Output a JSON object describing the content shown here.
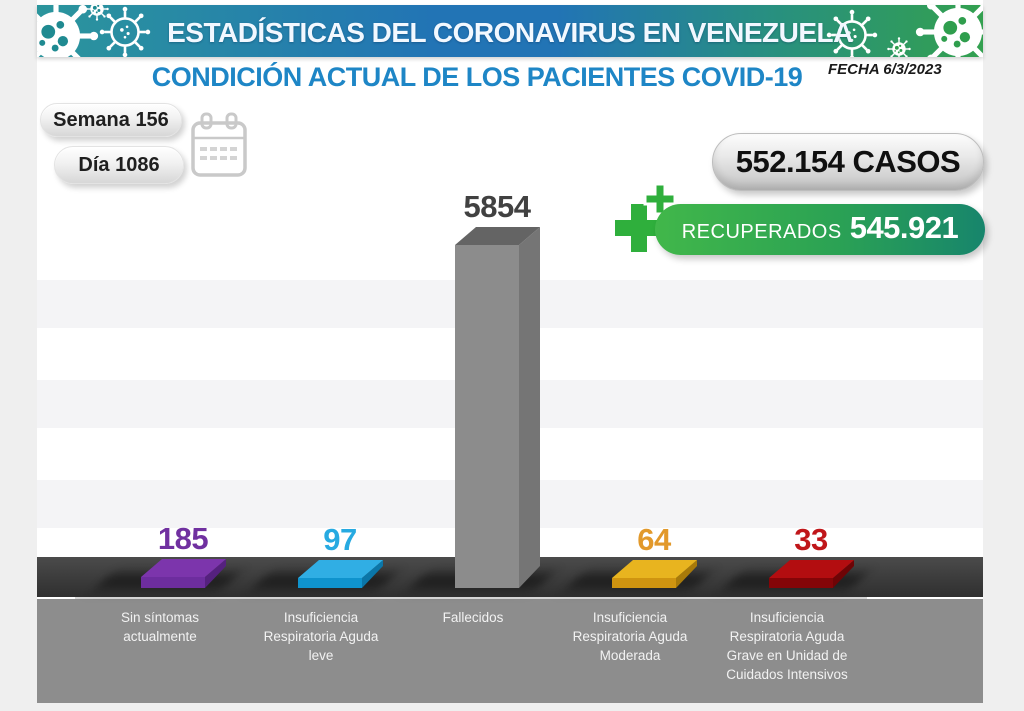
{
  "banner": {
    "title": "ESTADÍSTICAS DEL CORONAVIRUS EN VENEZUELA"
  },
  "subtitle": "CONDICIÓN ACTUAL DE LOS PACIENTES COVID-19",
  "date_label": "FECHA 6/3/2023",
  "counters": {
    "week": "Semana 156",
    "day": "Día 1086"
  },
  "totals": {
    "cases": "552.154 CASOS",
    "recovered_label": "RECUPERADOS",
    "recovered_value": "545.921"
  },
  "icons": {
    "banner_left": "coronavirus-icons",
    "banner_right": "coronavirus-icons",
    "calendar": "calendar-icon",
    "recovered": "medical-cross-icon"
  },
  "colors": {
    "banner_teal": "#2b959c",
    "banner_blue": "#2274b5",
    "banner_green": "#33a04f",
    "subtitle_blue": "#1e86c6",
    "recovered_green": "#2faf3c",
    "floor_dark": "#3a3a3a",
    "platform_gray": "#8d8d8d"
  },
  "chart_data": {
    "type": "bar",
    "title": "CONDICIÓN ACTUAL DE LOS PACIENTES COVID-19",
    "categories": [
      "Sin síntomas actualmente",
      "Insuficiencia Respiratoria Aguda leve",
      "Fallecidos",
      "Insuficiencia Respiratoria Aguda Moderada",
      "Insuficiencia Respiratoria Aguda Grave en Unidad de Cuidados Intensivos"
    ],
    "category_lines": [
      [
        "Sin síntomas",
        "actualmente"
      ],
      [
        "Insuficiencia",
        "Respiratoria Aguda",
        "leve"
      ],
      [
        "Fallecidos"
      ],
      [
        "Insuficiencia",
        "Respiratoria Aguda",
        "Moderada"
      ],
      [
        "Insuficiencia",
        "Respiratoria Aguda",
        "Grave en Unidad de",
        "Cuidados Intensivos"
      ]
    ],
    "values": [
      185,
      97,
      5854,
      64,
      33
    ],
    "value_colors": [
      "#7030a0",
      "#27aae1",
      "#414141",
      "#e2992b",
      "#c0161a"
    ],
    "bar_colors": [
      {
        "top": "#7c35ac",
        "front": "#6d2d9e",
        "side": "#55217e"
      },
      {
        "top": "#30aee4",
        "front": "#0f93cd",
        "side": "#0b76a8"
      },
      {
        "top": "#646464",
        "front": "#8c8c8c",
        "side": "#757575"
      },
      {
        "top": "#e8b41f",
        "front": "#cf9410",
        "side": "#a87a0a"
      },
      {
        "top": "#b30d10",
        "front": "#840508",
        "side": "#6e0406"
      }
    ],
    "ylim": [
      0,
      5854
    ],
    "legend": "none",
    "background": "horizontal-stripes"
  }
}
